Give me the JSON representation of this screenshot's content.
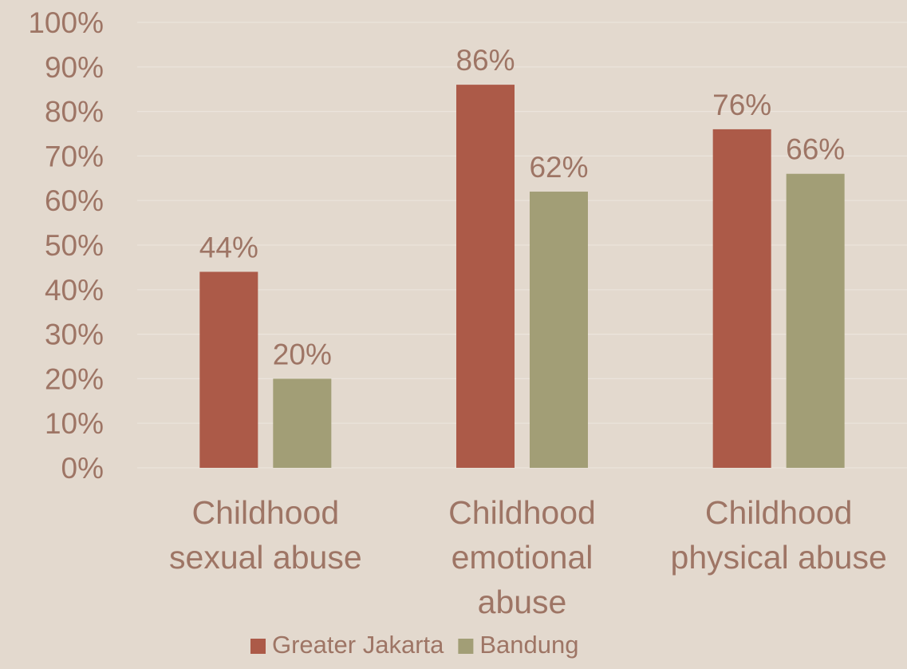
{
  "chart_data": {
    "type": "bar",
    "title": "",
    "xlabel": "",
    "ylabel": "",
    "ylim": [
      0,
      100
    ],
    "y_ticks": [
      "0%",
      "10%",
      "20%",
      "30%",
      "40%",
      "50%",
      "60%",
      "70%",
      "80%",
      "90%",
      "100%"
    ],
    "grid": true,
    "legend_position": "bottom",
    "categories": [
      [
        "Childhood",
        "sexual abuse"
      ],
      [
        "Childhood",
        "emotional",
        "abuse"
      ],
      [
        "Childhood",
        "physical abuse"
      ]
    ],
    "series": [
      {
        "name": "Greater Jakarta",
        "color": "#ac5a48",
        "values": [
          44,
          86,
          76
        ],
        "labels": [
          "44%",
          "86%",
          "76%"
        ]
      },
      {
        "name": "Bandung",
        "color": "#a29e76",
        "values": [
          20,
          62,
          66
        ],
        "labels": [
          "20%",
          "62%",
          "66%"
        ]
      }
    ],
    "text_color": "#9e7565",
    "grid_color": "#ebe4dc",
    "background": "#e3d9ce"
  }
}
